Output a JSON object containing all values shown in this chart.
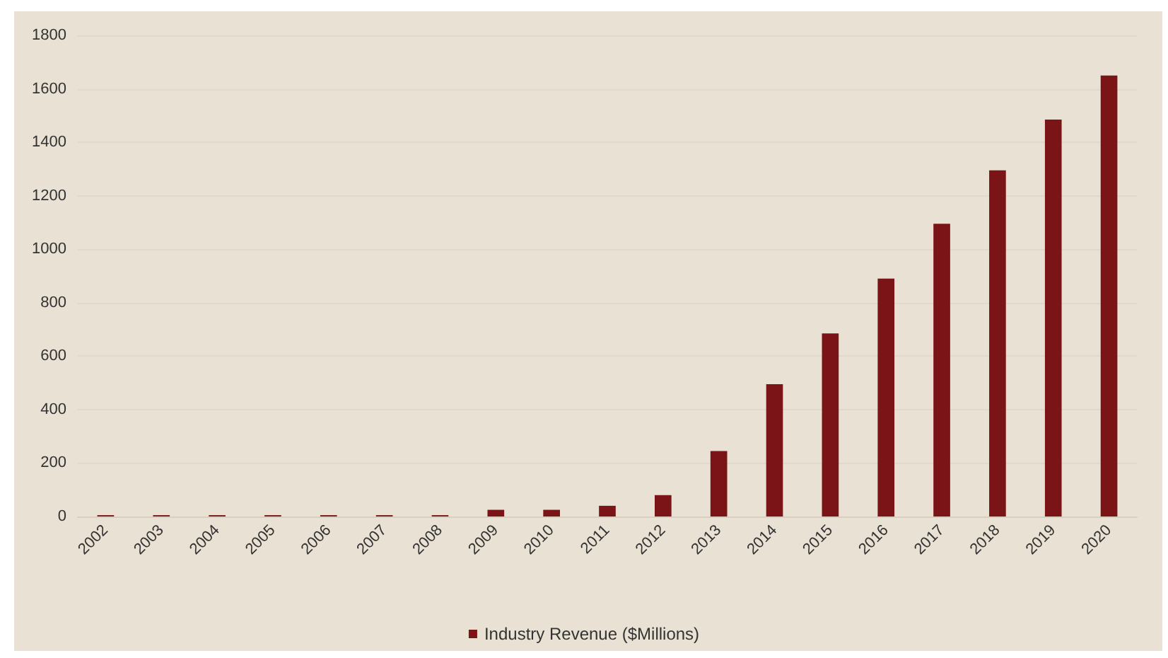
{
  "chart_data": {
    "type": "bar",
    "categories": [
      "2002",
      "2003",
      "2004",
      "2005",
      "2006",
      "2007",
      "2008",
      "2009",
      "2010",
      "2011",
      "2012",
      "2013",
      "2014",
      "2015",
      "2016",
      "2017",
      "2018",
      "2019",
      "2020"
    ],
    "series": [
      {
        "name": "Industry Revenue ($Millions)",
        "color": "#7b1416",
        "values": [
          5,
          5,
          5,
          5,
          5,
          5,
          5,
          25,
          25,
          40,
          80,
          245,
          495,
          685,
          890,
          1095,
          1295,
          1485,
          1650
        ]
      }
    ],
    "ylim": [
      0,
      1800
    ],
    "yticks": [
      0,
      200,
      400,
      600,
      800,
      1000,
      1200,
      1400,
      1600,
      1800
    ],
    "grid": "y",
    "legend": "bottom"
  }
}
